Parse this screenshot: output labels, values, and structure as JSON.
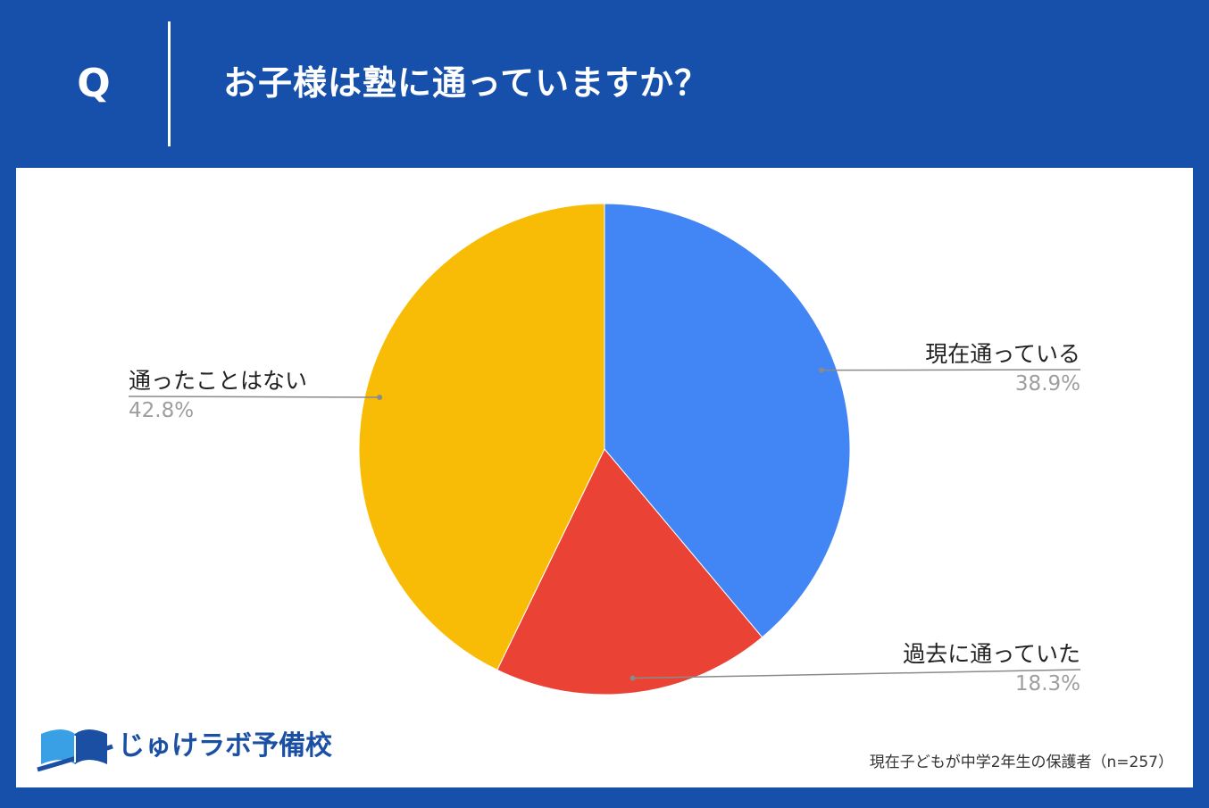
{
  "header": {
    "q_mark": "Q",
    "question": "お子様は塾に通っていますか？"
  },
  "colors": {
    "background": "#1650aa",
    "panel": "#ffffff",
    "slice_current": "#4285f4",
    "slice_past": "#ea4335",
    "slice_never": "#f9bc06",
    "leader": "#8a8a8a"
  },
  "chart_data": {
    "type": "pie",
    "start_angle_deg": 0,
    "direction": "clockwise",
    "slices": [
      {
        "label": "現在通っている",
        "value": 38.9,
        "value_label": "38.9%",
        "color": "#4285f4"
      },
      {
        "label": "過去に通っていた",
        "value": 18.3,
        "value_label": "18.3%",
        "color": "#ea4335"
      },
      {
        "label": "通ったことはない",
        "value": 42.8,
        "value_label": "42.8%",
        "color": "#f9bc06"
      }
    ]
  },
  "logo": {
    "icon": "book-logo-icon",
    "text": "じゅけラボ予備校"
  },
  "footnote": "現在子どもが中学2年生の保護者（n=257）"
}
